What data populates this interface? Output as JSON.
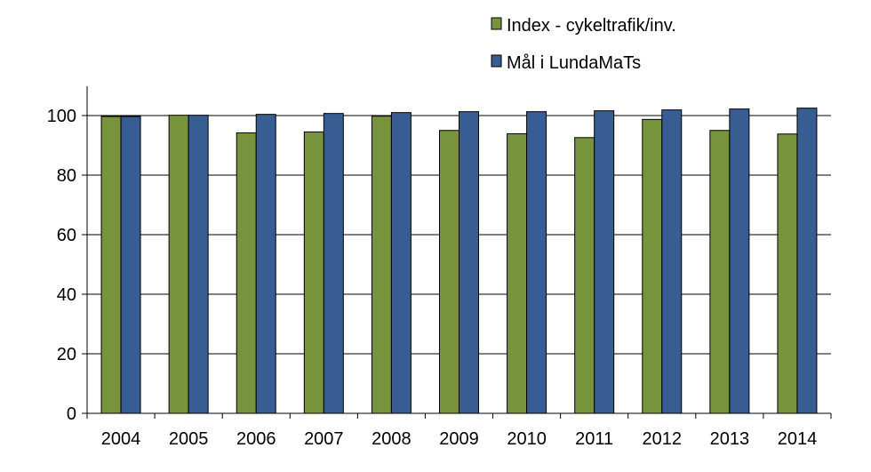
{
  "chart_data": {
    "type": "bar",
    "title": "",
    "xlabel": "",
    "ylabel": "",
    "categories": [
      "2004",
      "2005",
      "2006",
      "2007",
      "2008",
      "2009",
      "2010",
      "2011",
      "2012",
      "2013",
      "2014"
    ],
    "series": [
      {
        "name": "Index - cykeltrafik/inv.",
        "color": "#77933C",
        "values": [
          99.7,
          100.1,
          94.2,
          94.5,
          99.8,
          95.0,
          93.9,
          92.6,
          98.7,
          95.0,
          93.8
        ]
      },
      {
        "name": "Mål i LundaMaTs",
        "color": "#375D93",
        "values": [
          99.7,
          100.1,
          100.4,
          100.7,
          101.0,
          101.3,
          101.3,
          101.6,
          101.9,
          102.2,
          102.5
        ]
      }
    ],
    "ylim": [
      0,
      100
    ],
    "yticks": [
      "0",
      "20",
      "40",
      "60",
      "80",
      "100"
    ],
    "grid": true,
    "legend": "top-right"
  }
}
